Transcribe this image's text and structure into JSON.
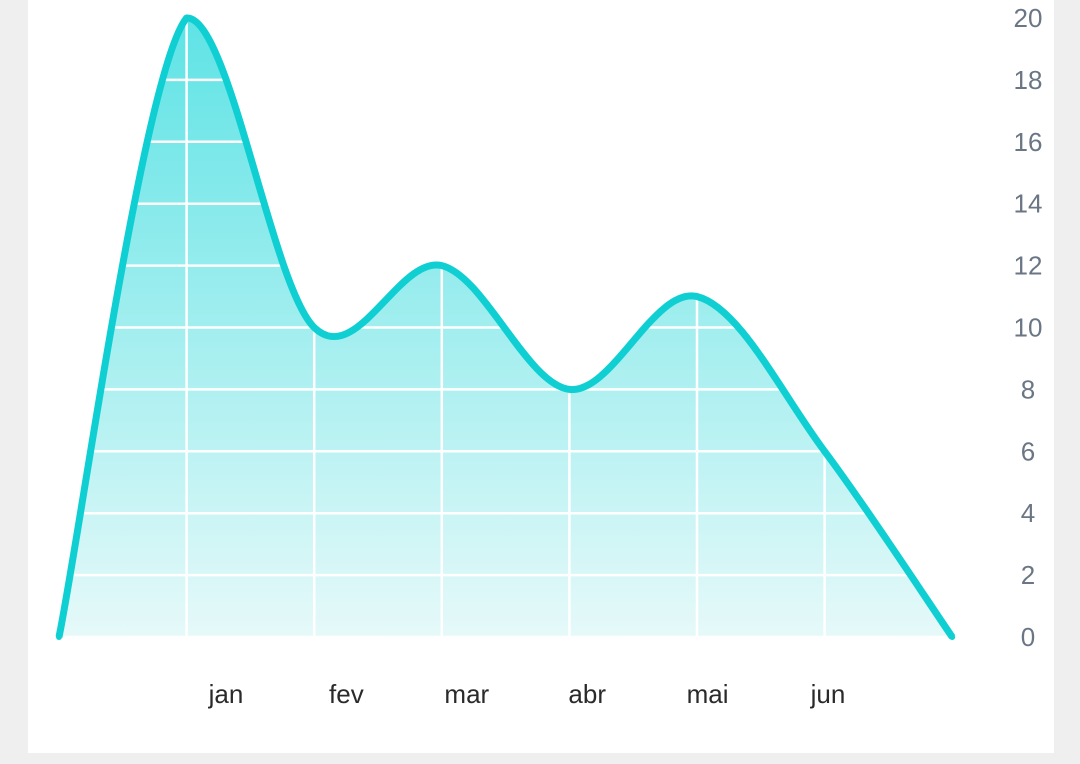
{
  "chart_data": {
    "type": "area",
    "x_categories": [
      "jan",
      "fev",
      "mar",
      "abr",
      "mai",
      "jun"
    ],
    "points": [
      {
        "x": 0,
        "y": 0
      },
      {
        "x": 1,
        "y": 20
      },
      {
        "x": 2,
        "y": 10
      },
      {
        "x": 3,
        "y": 12
      },
      {
        "x": 4,
        "y": 8
      },
      {
        "x": 5,
        "y": 11
      },
      {
        "x": 6,
        "y": 6
      },
      {
        "x": 7,
        "y": 0
      }
    ],
    "y_ticks": [
      "0",
      "2",
      "4",
      "6",
      "8",
      "10",
      "12",
      "14",
      "16",
      "18",
      "20"
    ],
    "ylim": [
      0,
      20
    ],
    "grid": true,
    "y_axis_side": "right",
    "colors": {
      "line": "#0fcfd3",
      "fill_top": "#5ee3e5",
      "fill_bottom": "#e6f9f9",
      "grid": "#ffffff",
      "tick_y": "#6b7685",
      "tick_x": "#2a2a2a"
    }
  }
}
